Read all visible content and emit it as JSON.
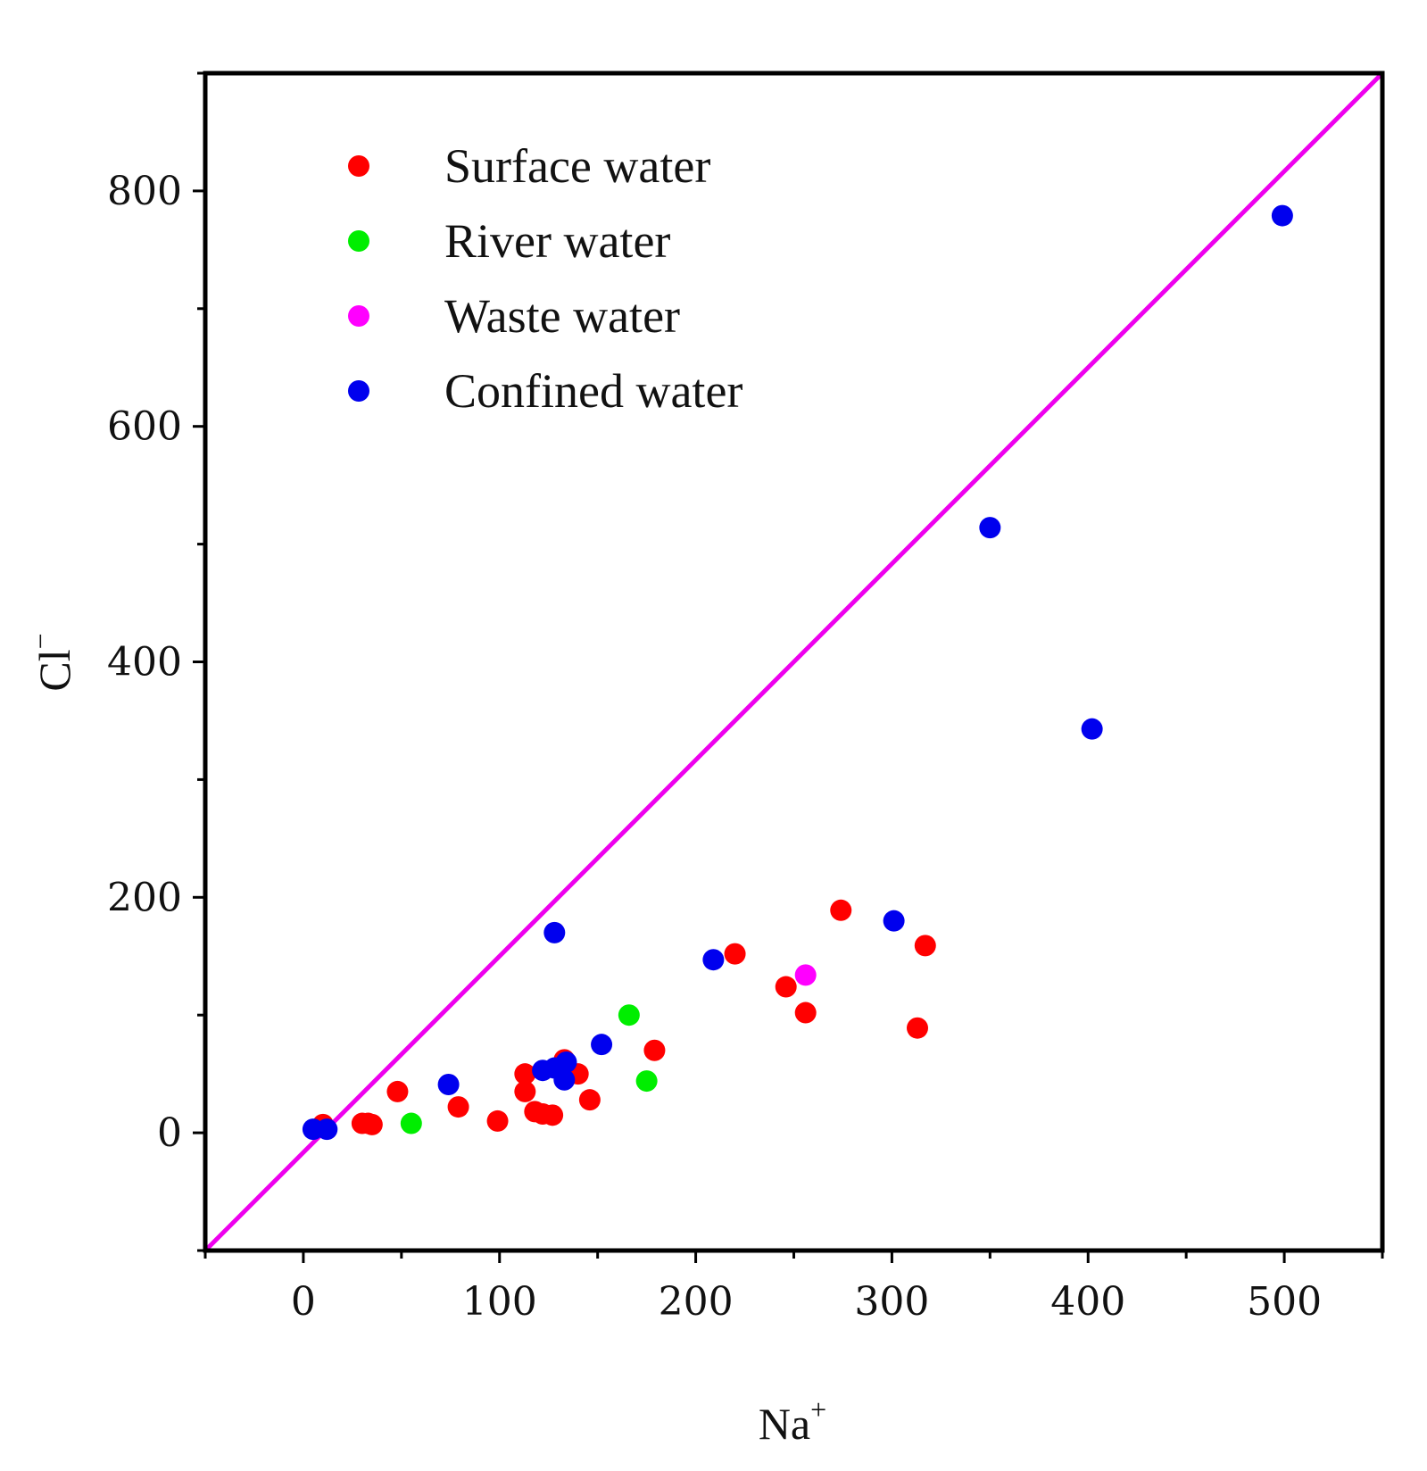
{
  "chart_data": {
    "type": "scatter",
    "title": "",
    "xlabel": "Na",
    "xlabel_superscript": "+",
    "ylabel": "Cl",
    "ylabel_superscript": "−",
    "xlim": [
      -50,
      550
    ],
    "ylim": [
      -100,
      900
    ],
    "x_ticks": [
      0,
      100,
      200,
      300,
      400,
      500
    ],
    "y_ticks": [
      0,
      200,
      400,
      600,
      800
    ],
    "x_tick_labels": [
      "0",
      "100",
      "200",
      "300",
      "400",
      "500"
    ],
    "y_tick_labels": [
      "0",
      "200",
      "400",
      "600",
      "800"
    ],
    "grid": false,
    "legend_position": "top-left",
    "reference_line": {
      "name": "1:1 line",
      "color": "#ee00ee",
      "points": [
        [
          -50,
          -100
        ],
        [
          550,
          900
        ]
      ]
    },
    "series": [
      {
        "name": "Surface water",
        "color": "#ff0000",
        "points": [
          [
            10,
            7
          ],
          [
            30,
            8
          ],
          [
            33,
            8
          ],
          [
            35,
            7
          ],
          [
            48,
            35
          ],
          [
            79,
            22
          ],
          [
            99,
            10
          ],
          [
            113,
            50
          ],
          [
            113,
            35
          ],
          [
            118,
            18
          ],
          [
            122,
            16
          ],
          [
            127,
            15
          ],
          [
            133,
            62
          ],
          [
            140,
            50
          ],
          [
            146,
            28
          ],
          [
            179,
            70
          ],
          [
            220,
            152
          ],
          [
            246,
            124
          ],
          [
            256,
            102
          ],
          [
            274,
            189
          ],
          [
            313,
            89
          ],
          [
            317,
            159
          ]
        ]
      },
      {
        "name": "River water",
        "color": "#00ee00",
        "points": [
          [
            55,
            8
          ],
          [
            166,
            100
          ],
          [
            175,
            44
          ]
        ]
      },
      {
        "name": "Waste water",
        "color": "#ff00ff",
        "points": [
          [
            256,
            134
          ]
        ]
      },
      {
        "name": "Confined water",
        "color": "#0000ee",
        "points": [
          [
            5,
            3
          ],
          [
            12,
            3
          ],
          [
            74,
            41
          ],
          [
            122,
            53
          ],
          [
            128,
            55
          ],
          [
            128,
            170
          ],
          [
            133,
            45
          ],
          [
            134,
            60
          ],
          [
            152,
            75
          ],
          [
            209,
            147
          ],
          [
            301,
            180
          ],
          [
            350,
            514
          ],
          [
            402,
            343
          ],
          [
            499,
            779
          ]
        ]
      }
    ]
  }
}
